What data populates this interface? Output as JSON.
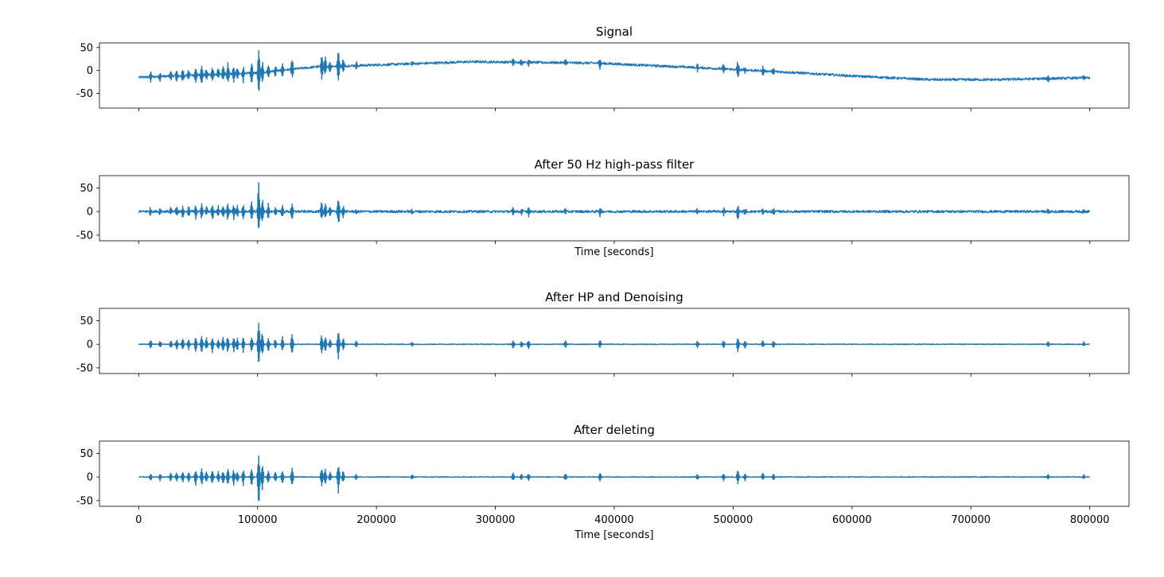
{
  "chart_data": [
    {
      "type": "line",
      "title": "Signal",
      "xlabel": "",
      "xlim": [
        -33000,
        833000
      ],
      "ylim": [
        -82,
        60
      ],
      "yticks": [
        50,
        0,
        -50
      ],
      "xticks": [
        0,
        100000,
        200000,
        300000,
        400000,
        500000,
        600000,
        700000,
        800000
      ],
      "show_xtick_labels": false,
      "color": "#1f77b4",
      "baseline": [
        [
          0,
          -15
        ],
        [
          100000,
          -5
        ],
        [
          150000,
          8
        ],
        [
          200000,
          12
        ],
        [
          280000,
          19
        ],
        [
          385000,
          16
        ],
        [
          480000,
          5
        ],
        [
          540000,
          -3
        ],
        [
          600000,
          -12
        ],
        [
          665000,
          -20
        ],
        [
          720000,
          -20
        ],
        [
          800000,
          -16
        ]
      ],
      "noise": 2.5,
      "bursts": [
        [
          10000,
          14
        ],
        [
          18000,
          10
        ],
        [
          27000,
          12
        ],
        [
          32000,
          14
        ],
        [
          37000,
          16
        ],
        [
          42000,
          14
        ],
        [
          48000,
          20
        ],
        [
          53000,
          22
        ],
        [
          57000,
          16
        ],
        [
          62000,
          22
        ],
        [
          67000,
          14
        ],
        [
          71000,
          18
        ],
        [
          75000,
          26
        ],
        [
          80000,
          22
        ],
        [
          83000,
          16
        ],
        [
          88000,
          20
        ],
        [
          95000,
          26
        ],
        [
          101000,
          64
        ],
        [
          104000,
          28
        ],
        [
          109000,
          18
        ],
        [
          115000,
          14
        ],
        [
          121000,
          18
        ],
        [
          129000,
          22
        ],
        [
          154000,
          30
        ],
        [
          157000,
          20
        ],
        [
          161000,
          14
        ],
        [
          168000,
          40
        ],
        [
          172000,
          16
        ],
        [
          183000,
          8
        ],
        [
          230000,
          6
        ],
        [
          315000,
          10
        ],
        [
          322000,
          8
        ],
        [
          328000,
          10
        ],
        [
          359000,
          8
        ],
        [
          388000,
          14
        ],
        [
          470000,
          8
        ],
        [
          492000,
          10
        ],
        [
          504000,
          22
        ],
        [
          510000,
          8
        ],
        [
          525000,
          10
        ],
        [
          534000,
          7
        ],
        [
          765000,
          8
        ],
        [
          795000,
          6
        ]
      ]
    },
    {
      "type": "line",
      "title": "After 50 Hz high-pass filter",
      "xlabel": "Time [seconds]",
      "xlim": [
        -33000,
        833000
      ],
      "ylim": [
        -62,
        76
      ],
      "yticks": [
        50,
        0,
        -50
      ],
      "xticks": [
        0,
        100000,
        200000,
        300000,
        400000,
        500000,
        600000,
        700000,
        800000
      ],
      "show_xtick_labels": false,
      "color": "#1f77b4",
      "baseline": [
        [
          0,
          0
        ],
        [
          800000,
          0
        ]
      ],
      "noise": 2.5,
      "bursts": [
        [
          10000,
          10
        ],
        [
          18000,
          8
        ],
        [
          27000,
          10
        ],
        [
          32000,
          12
        ],
        [
          37000,
          14
        ],
        [
          42000,
          12
        ],
        [
          48000,
          18
        ],
        [
          53000,
          20
        ],
        [
          57000,
          14
        ],
        [
          62000,
          18
        ],
        [
          67000,
          12
        ],
        [
          71000,
          16
        ],
        [
          75000,
          20
        ],
        [
          80000,
          18
        ],
        [
          83000,
          14
        ],
        [
          88000,
          18
        ],
        [
          95000,
          22
        ],
        [
          101000,
          66
        ],
        [
          104000,
          30
        ],
        [
          109000,
          16
        ],
        [
          115000,
          12
        ],
        [
          121000,
          16
        ],
        [
          129000,
          22
        ],
        [
          154000,
          22
        ],
        [
          157000,
          18
        ],
        [
          161000,
          12
        ],
        [
          168000,
          36
        ],
        [
          172000,
          14
        ],
        [
          183000,
          7
        ],
        [
          230000,
          5
        ],
        [
          315000,
          10
        ],
        [
          322000,
          8
        ],
        [
          328000,
          10
        ],
        [
          359000,
          8
        ],
        [
          388000,
          10
        ],
        [
          470000,
          7
        ],
        [
          492000,
          9
        ],
        [
          504000,
          18
        ],
        [
          510000,
          8
        ],
        [
          525000,
          8
        ],
        [
          534000,
          7
        ],
        [
          765000,
          6
        ],
        [
          795000,
          5
        ]
      ]
    },
    {
      "type": "line",
      "title": "After HP and Denoising",
      "xlabel": "",
      "xlim": [
        -33000,
        833000
      ],
      "ylim": [
        -62,
        76
      ],
      "yticks": [
        50,
        0,
        -50
      ],
      "xticks": [
        0,
        100000,
        200000,
        300000,
        400000,
        500000,
        600000,
        700000,
        800000
      ],
      "show_xtick_labels": false,
      "color": "#1f77b4",
      "baseline": [
        [
          0,
          0
        ],
        [
          800000,
          0
        ]
      ],
      "noise": 0.8,
      "bursts": [
        [
          10000,
          10
        ],
        [
          18000,
          8
        ],
        [
          27000,
          10
        ],
        [
          32000,
          12
        ],
        [
          37000,
          14
        ],
        [
          42000,
          12
        ],
        [
          48000,
          18
        ],
        [
          53000,
          20
        ],
        [
          57000,
          14
        ],
        [
          62000,
          18
        ],
        [
          67000,
          12
        ],
        [
          71000,
          16
        ],
        [
          75000,
          20
        ],
        [
          80000,
          18
        ],
        [
          83000,
          14
        ],
        [
          88000,
          18
        ],
        [
          95000,
          22
        ],
        [
          101000,
          66
        ],
        [
          104000,
          30
        ],
        [
          109000,
          16
        ],
        [
          115000,
          12
        ],
        [
          121000,
          16
        ],
        [
          129000,
          22
        ],
        [
          154000,
          22
        ],
        [
          157000,
          18
        ],
        [
          161000,
          12
        ],
        [
          168000,
          36
        ],
        [
          172000,
          14
        ],
        [
          183000,
          7
        ],
        [
          230000,
          5
        ],
        [
          315000,
          10
        ],
        [
          322000,
          8
        ],
        [
          328000,
          10
        ],
        [
          359000,
          8
        ],
        [
          388000,
          10
        ],
        [
          470000,
          7
        ],
        [
          492000,
          9
        ],
        [
          504000,
          18
        ],
        [
          510000,
          8
        ],
        [
          525000,
          8
        ],
        [
          534000,
          7
        ],
        [
          765000,
          6
        ],
        [
          795000,
          5
        ]
      ]
    },
    {
      "type": "line",
      "title": "After deleting",
      "xlabel": "Time [seconds]",
      "xlim": [
        -33000,
        833000
      ],
      "ylim": [
        -62,
        76
      ],
      "yticks": [
        50,
        0,
        -50
      ],
      "xticks": [
        0,
        100000,
        200000,
        300000,
        400000,
        500000,
        600000,
        700000,
        800000
      ],
      "show_xtick_labels": true,
      "color": "#1f77b4",
      "baseline": [
        [
          0,
          0
        ],
        [
          800000,
          0
        ]
      ],
      "noise": 0.8,
      "bursts": [
        [
          10000,
          10
        ],
        [
          18000,
          8
        ],
        [
          27000,
          10
        ],
        [
          32000,
          12
        ],
        [
          37000,
          14
        ],
        [
          42000,
          12
        ],
        [
          48000,
          18
        ],
        [
          53000,
          20
        ],
        [
          57000,
          14
        ],
        [
          62000,
          18
        ],
        [
          67000,
          12
        ],
        [
          71000,
          16
        ],
        [
          75000,
          20
        ],
        [
          80000,
          18
        ],
        [
          83000,
          14
        ],
        [
          88000,
          18
        ],
        [
          95000,
          22
        ],
        [
          101000,
          66
        ],
        [
          104000,
          30
        ],
        [
          109000,
          16
        ],
        [
          115000,
          12
        ],
        [
          121000,
          16
        ],
        [
          129000,
          22
        ],
        [
          154000,
          22
        ],
        [
          157000,
          18
        ],
        [
          161000,
          12
        ],
        [
          168000,
          36
        ],
        [
          172000,
          14
        ],
        [
          183000,
          7
        ],
        [
          230000,
          5
        ],
        [
          315000,
          10
        ],
        [
          322000,
          8
        ],
        [
          328000,
          10
        ],
        [
          359000,
          8
        ],
        [
          388000,
          10
        ],
        [
          470000,
          7
        ],
        [
          492000,
          9
        ],
        [
          504000,
          18
        ],
        [
          510000,
          8
        ],
        [
          525000,
          8
        ],
        [
          534000,
          7
        ],
        [
          765000,
          6
        ],
        [
          795000,
          5
        ]
      ]
    }
  ]
}
